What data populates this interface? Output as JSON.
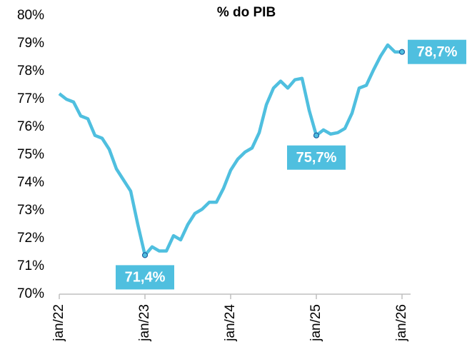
{
  "chart_data": {
    "type": "line",
    "title": "% do PIB",
    "categories": [
      "jan/22",
      null,
      null,
      null,
      null,
      null,
      null,
      null,
      null,
      null,
      null,
      null,
      "jan/23",
      null,
      null,
      null,
      null,
      null,
      null,
      null,
      null,
      null,
      null,
      null,
      "jan/24",
      null,
      null,
      null,
      null,
      null,
      null,
      null,
      null,
      null,
      null,
      null,
      "jan/25",
      null,
      null,
      null,
      null,
      null,
      null,
      null,
      null,
      null,
      null,
      null,
      "jan/26"
    ],
    "series": [
      {
        "name": "% do PIB",
        "color": "#4fbfdf",
        "values": [
          77.2,
          77.0,
          76.9,
          76.4,
          76.3,
          75.7,
          75.6,
          75.2,
          74.5,
          74.1,
          73.7,
          72.5,
          71.4,
          71.7,
          71.55,
          71.55,
          72.1,
          71.95,
          72.5,
          72.9,
          73.05,
          73.3,
          73.3,
          73.8,
          74.45,
          74.85,
          75.1,
          75.25,
          75.8,
          76.8,
          77.4,
          77.65,
          77.4,
          77.7,
          77.75,
          76.6,
          75.7,
          75.9,
          75.75,
          75.8,
          75.95,
          76.5,
          77.4,
          77.5,
          78.05,
          78.55,
          78.95,
          78.7,
          78.7
        ],
        "value_labels": [
          null,
          null,
          null,
          null,
          null,
          null,
          null,
          null,
          null,
          null,
          null,
          null,
          "71,4%",
          null,
          null,
          null,
          null,
          null,
          null,
          null,
          null,
          null,
          null,
          null,
          null,
          null,
          null,
          null,
          null,
          null,
          null,
          null,
          null,
          null,
          null,
          null,
          "75,7%",
          null,
          null,
          null,
          null,
          null,
          null,
          null,
          null,
          null,
          null,
          null,
          "78,7%"
        ]
      }
    ],
    "ylim": [
      70,
      80
    ],
    "yticks": [
      {
        "value": 70,
        "label": "70%"
      },
      {
        "value": 71,
        "label": "71%"
      },
      {
        "value": 72,
        "label": "72%"
      },
      {
        "value": 73,
        "label": "73%"
      },
      {
        "value": 74,
        "label": "74%"
      },
      {
        "value": 75,
        "label": "75%"
      },
      {
        "value": 76,
        "label": "76%"
      },
      {
        "value": 77,
        "label": "77%"
      },
      {
        "value": 78,
        "label": "78%"
      },
      {
        "value": 79,
        "label": "79%"
      },
      {
        "value": 80,
        "label": "80%"
      }
    ],
    "grid": false
  }
}
